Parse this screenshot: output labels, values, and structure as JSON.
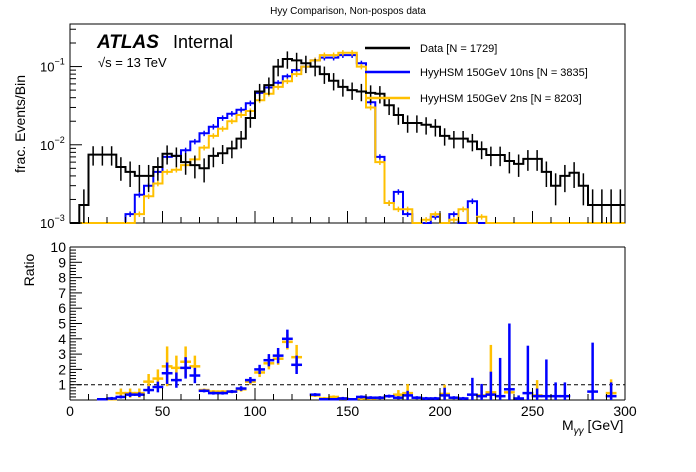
{
  "chart_data": [
    {
      "type": "line",
      "subtype": "step-histogram",
      "title": "Hyy Comparison, Non-pospos data",
      "xlabel": "",
      "ylabel": "frac. Events/Bin",
      "yscale": "log",
      "xlim": [
        0,
        300
      ],
      "ylim": [
        0.001,
        0.35
      ],
      "y_tick_labels": [
        "10^{-3}",
        "10^{-2}",
        "10^{-1}"
      ],
      "grid": false,
      "legend_position": "top-right",
      "annotation": {
        "atlas": "ATLAS",
        "atlas_suffix": "Internal",
        "energy": "√s = 13 TeV"
      },
      "bin_width": 5,
      "bin_start": 0,
      "series": [
        {
          "name": "Data [N = 1729]",
          "color": "#000000",
          "values": [
            0,
            0.0017,
            0.0075,
            0.0075,
            0.0075,
            0.0052,
            0.0045,
            0.004,
            0.004,
            0.0052,
            0.0077,
            0.0072,
            0.006,
            0.0055,
            0.005,
            0.0072,
            0.0078,
            0.009,
            0.012,
            0.022,
            0.048,
            0.058,
            0.1,
            0.125,
            0.12,
            0.11,
            0.1,
            0.08,
            0.066,
            0.055,
            0.05,
            0.048,
            0.046,
            0.045,
            0.032,
            0.024,
            0.019,
            0.019,
            0.018,
            0.017,
            0.013,
            0.012,
            0.012,
            0.011,
            0.0088,
            0.0074,
            0.0074,
            0.0062,
            0.0057,
            0.0066,
            0.0066,
            0.0045,
            0.003,
            0.004,
            0.0044,
            0.003,
            0.0017,
            0.0017,
            0.0017,
            0.0017
          ]
        },
        {
          "name": "HyyHSM 150GeV 10ns [N = 3835]",
          "color": "#0000ff",
          "values": [
            0,
            0,
            0,
            0,
            0,
            0,
            0.0013,
            0.0023,
            0.003,
            0.0045,
            0.007,
            0.0072,
            0.0085,
            0.011,
            0.014,
            0.017,
            0.022,
            0.025,
            0.028,
            0.034,
            0.046,
            0.054,
            0.062,
            0.075,
            0.09,
            0.1,
            0.12,
            0.13,
            0.13,
            0.14,
            0.14,
            0.11,
            0.035,
            0.007,
            0.0018,
            0.0025,
            0.0013,
            0,
            0,
            0.0012,
            0,
            0.0013,
            0,
            0.0019,
            0,
            0,
            0,
            0,
            0,
            0,
            0,
            0,
            0,
            0,
            0,
            0,
            0,
            0,
            0,
            0
          ]
        },
        {
          "name": "HyyHSM 150GeV 2ns [N = 8203]",
          "color": "#ffc000",
          "values": [
            0,
            0,
            0,
            0,
            0,
            0,
            0,
            0.0013,
            0.0022,
            0.0032,
            0.0045,
            0.0048,
            0.0055,
            0.0065,
            0.0092,
            0.013,
            0.016,
            0.02,
            0.024,
            0.027,
            0.037,
            0.045,
            0.055,
            0.065,
            0.08,
            0.1,
            0.12,
            0.14,
            0.14,
            0.15,
            0.15,
            0.1,
            0.03,
            0.006,
            0.0018,
            0.0015,
            0.0015,
            0.001,
            0.0011,
            0.0013,
            0.001,
            0.0011,
            0.0015,
            0.001,
            0.0012,
            0,
            0,
            0,
            0,
            0,
            0,
            0,
            0,
            0,
            0,
            0,
            0,
            0,
            0,
            0
          ]
        }
      ]
    },
    {
      "type": "scatter",
      "subtype": "ratio-with-errorbars",
      "xlabel": "M_{γγ} [GeV]",
      "ylabel": "Ratio",
      "xlim": [
        0,
        300
      ],
      "ylim": [
        0,
        10
      ],
      "x_tick_labels": [
        "0",
        "50",
        "100",
        "150",
        "200",
        "250",
        "300"
      ],
      "y_tick_labels": [
        "1",
        "2",
        "3",
        "4",
        "5",
        "6",
        "7",
        "8",
        "9",
        "10"
      ],
      "reference_line": 1,
      "series": [
        {
          "name": "HyyHSM 150GeV 10ns / Data",
          "color": "#0000ff",
          "points": [
            [
              17.5,
              0.05,
              0.05
            ],
            [
              22.5,
              0.1,
              0.1
            ],
            [
              27.5,
              0.2,
              0.1
            ],
            [
              32.5,
              0.35,
              0.15
            ],
            [
              37.5,
              0.35,
              0.15
            ],
            [
              42.5,
              0.65,
              0.25
            ],
            [
              47.5,
              0.85,
              0.35
            ],
            [
              52.5,
              1.75,
              0.7
            ],
            [
              57.5,
              1.3,
              0.5
            ],
            [
              62.5,
              2.1,
              0.7
            ],
            [
              67.5,
              1.6,
              0.5
            ],
            [
              72.5,
              0.6,
              0.1
            ],
            [
              77.5,
              0.45,
              0.1
            ],
            [
              82.5,
              0.45,
              0.1
            ],
            [
              87.5,
              0.55,
              0.1
            ],
            [
              92.5,
              0.75,
              0.15
            ],
            [
              97.5,
              1.3,
              0.2
            ],
            [
              102.5,
              2.0,
              0.3
            ],
            [
              107.5,
              2.6,
              0.4
            ],
            [
              112.5,
              2.9,
              0.5
            ],
            [
              117.5,
              4.0,
              0.6
            ],
            [
              122.5,
              2.3,
              0.6
            ],
            [
              132.5,
              0.35,
              0.1
            ],
            [
              137.5,
              0.05,
              0.05
            ],
            [
              142.5,
              0.05,
              0.05
            ],
            [
              147.5,
              0.1,
              0.1
            ],
            [
              152.5,
              0.05,
              0.05
            ],
            [
              157.5,
              0.2,
              0.1
            ],
            [
              162.5,
              0.15,
              0.1
            ],
            [
              167.5,
              0.15,
              0.1
            ],
            [
              172.5,
              0.25,
              0.1
            ],
            [
              177.5,
              0.15,
              0.1
            ],
            [
              182.5,
              0.3,
              0.3
            ],
            [
              187.5,
              0.15,
              0.1
            ],
            [
              192.5,
              0.1,
              0.1
            ],
            [
              197.5,
              0.1,
              0.1
            ],
            [
              202.5,
              0.3,
              0.5
            ],
            [
              207.5,
              0.15,
              0.1
            ],
            [
              212.5,
              0.1,
              0.1
            ],
            [
              217.5,
              0.35,
              1.1
            ],
            [
              222.5,
              0.25,
              0.8
            ],
            [
              227.5,
              0.35,
              1.5
            ],
            [
              232.5,
              0.25,
              2.5
            ],
            [
              237.5,
              0.7,
              4.3
            ],
            [
              242.5,
              0.1,
              0.2
            ],
            [
              247.5,
              0.45,
              3.1
            ],
            [
              252.5,
              0.25,
              0.5
            ],
            [
              257.5,
              0.25,
              2.4
            ],
            [
              262.5,
              0.25,
              0.9
            ],
            [
              267.5,
              0.25,
              0.9
            ],
            [
              282.5,
              0.55,
              3.2
            ],
            [
              292.5,
              0.25,
              0.9
            ]
          ]
        },
        {
          "name": "HyyHSM 150GeV 2ns / Data",
          "color": "#ffc000",
          "points": [
            [
              17.5,
              0.05,
              0.05
            ],
            [
              22.5,
              0.05,
              0.05
            ],
            [
              27.5,
              0.45,
              0.3
            ],
            [
              32.5,
              0.45,
              0.3
            ],
            [
              37.5,
              0.45,
              0.3
            ],
            [
              42.5,
              1.2,
              0.5
            ],
            [
              47.5,
              1.4,
              0.6
            ],
            [
              52.5,
              2.2,
              1.3
            ],
            [
              57.5,
              2.1,
              0.8
            ],
            [
              62.5,
              2.5,
              1.0
            ],
            [
              67.5,
              2.2,
              0.7
            ],
            [
              72.5,
              0.65,
              0.1
            ],
            [
              77.5,
              0.55,
              0.1
            ],
            [
              82.5,
              0.55,
              0.1
            ],
            [
              87.5,
              0.55,
              0.1
            ],
            [
              92.5,
              0.7,
              0.15
            ],
            [
              97.5,
              1.2,
              0.2
            ],
            [
              102.5,
              1.8,
              0.3
            ],
            [
              107.5,
              2.4,
              0.4
            ],
            [
              112.5,
              2.7,
              0.4
            ],
            [
              117.5,
              3.8,
              0.5
            ],
            [
              122.5,
              2.8,
              0.8
            ],
            [
              132.5,
              0.3,
              0.1
            ],
            [
              137.5,
              0.1,
              0.1
            ],
            [
              142.5,
              0.2,
              0.1
            ],
            [
              147.5,
              0.1,
              0.1
            ],
            [
              157.5,
              0.1,
              0.1
            ],
            [
              162.5,
              0.1,
              0.1
            ],
            [
              167.5,
              0.15,
              0.1
            ],
            [
              177.5,
              0.35,
              0.3
            ],
            [
              182.5,
              0.45,
              0.6
            ],
            [
              202.5,
              0.4,
              0.6
            ],
            [
              222.5,
              0.3,
              0.7
            ],
            [
              227.5,
              0.5,
              3.1
            ],
            [
              237.5,
              0.5,
              0.3
            ],
            [
              252.5,
              0.3,
              1.0
            ],
            [
              292.5,
              0.45,
              0.9
            ]
          ]
        }
      ]
    }
  ],
  "labels": {
    "title": "Hyy Comparison, Non-pospos data",
    "atlas": "ATLAS",
    "internal": "Internal",
    "energy": "√s = 13 TeV",
    "top_ylabel": "frac. Events/Bin",
    "ratio_ylabel": "Ratio",
    "xlabel_main": "M",
    "xlabel_sub": "γγ",
    "xlabel_unit": " [GeV]",
    "legend": [
      {
        "label": "Data [N = 1729]",
        "color": "#000000"
      },
      {
        "label": "HyyHSM 150GeV 10ns [N = 3835]",
        "color": "#0000ff"
      },
      {
        "label": "HyyHSM 150GeV 2ns [N = 8203]",
        "color": "#ffc000"
      }
    ],
    "top_yticks": [
      {
        "base": "10",
        "exp": "−1",
        "value": 0.1
      },
      {
        "base": "10",
        "exp": "−2",
        "value": 0.01
      },
      {
        "base": "10",
        "exp": "−3",
        "value": 0.001
      }
    ],
    "ratio_yticks": [
      "1",
      "2",
      "3",
      "4",
      "5",
      "6",
      "7",
      "8",
      "9",
      "10"
    ],
    "xticks": [
      "0",
      "50",
      "100",
      "150",
      "200",
      "250",
      "300"
    ]
  }
}
